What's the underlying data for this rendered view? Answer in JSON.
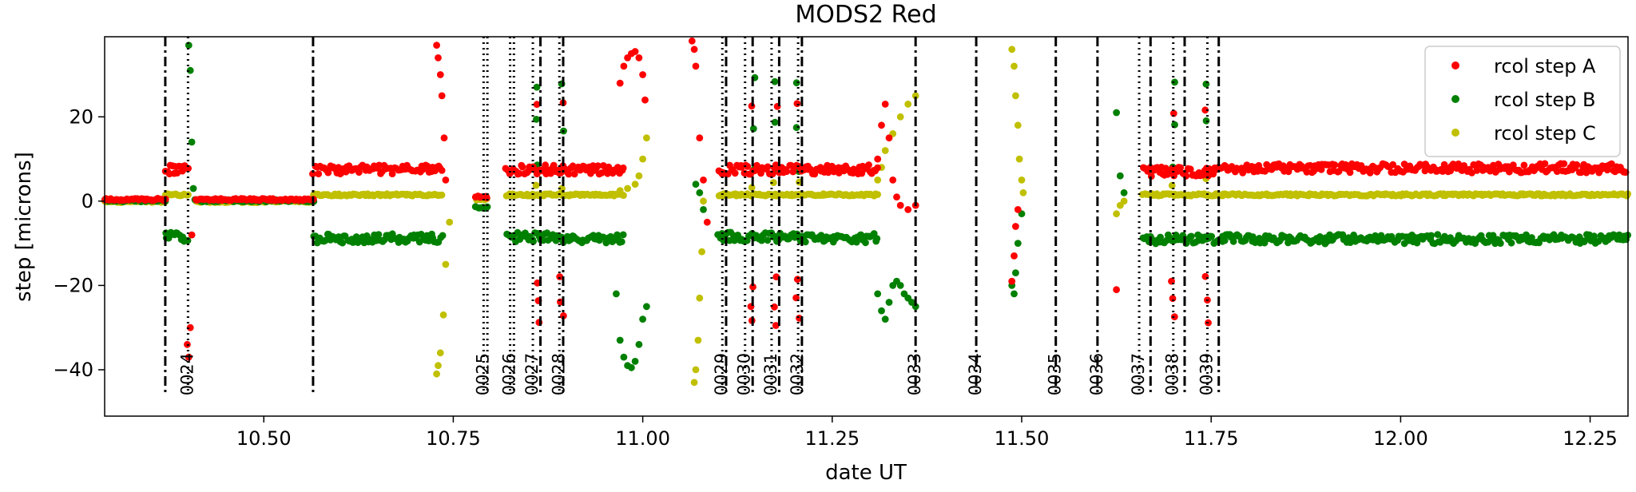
{
  "chart_data": {
    "type": "scatter",
    "title": "MODS2 Red",
    "xlabel": "date UT",
    "ylabel": "step [microns]",
    "xlim": [
      10.29,
      12.3
    ],
    "ylim": [
      -51,
      39
    ],
    "xticks": [
      10.5,
      10.75,
      11.0,
      11.25,
      11.5,
      11.75,
      12.0,
      12.25
    ],
    "xtick_labels": [
      "10.50",
      "10.75",
      "11.00",
      "11.25",
      "11.50",
      "11.75",
      "12.00",
      "12.25"
    ],
    "yticks": [
      -40,
      -20,
      0,
      20
    ],
    "ytick_labels": [
      "−40",
      "−20",
      "0",
      "20"
    ],
    "grid": false,
    "legend_position": "top-right",
    "series": [
      {
        "name": "rcol step A",
        "color": "#ff0000",
        "baseline": 7.5
      },
      {
        "name": "rcol step B",
        "color": "#008000",
        "baseline": -8.8
      },
      {
        "name": "rcol step C",
        "color": "#c0c000",
        "baseline": 1.5
      }
    ],
    "segments": [
      {
        "x_start": 10.29,
        "x_end": 10.37,
        "values": {
          "A": 0.4,
          "B": 0.1,
          "C": -0.1
        }
      },
      {
        "x_start": 10.37,
        "x_end": 10.4,
        "values": {
          "A": 7.5,
          "B": -8.5,
          "C": 1.5
        }
      },
      {
        "x_start": 10.41,
        "x_end": 10.565,
        "values": {
          "A": 0.4,
          "B": 0.1,
          "C": -0.1
        }
      },
      {
        "x_start": 10.565,
        "x_end": 10.735,
        "values": {
          "A": 7.5,
          "B": -8.8,
          "C": 1.5
        }
      },
      {
        "x_start": 10.78,
        "x_end": 10.795,
        "values": {
          "A": 1.0,
          "B": -1.5,
          "C": 0.5
        }
      },
      {
        "x_start": 10.82,
        "x_end": 10.895,
        "values": {
          "A": 7.5,
          "B": -8.5,
          "C": 1.5
        }
      },
      {
        "x_start": 10.895,
        "x_end": 10.975,
        "values": {
          "A": 7.5,
          "B": -8.8,
          "C": 1.5
        }
      },
      {
        "x_start": 11.1,
        "x_end": 11.21,
        "values": {
          "A": 7.5,
          "B": -8.5,
          "C": 1.5
        }
      },
      {
        "x_start": 11.21,
        "x_end": 11.31,
        "values": {
          "A": 7.5,
          "B": -8.8,
          "C": 1.5
        }
      },
      {
        "x_start": 11.66,
        "x_end": 11.765,
        "values": {
          "A": 7.0,
          "B": -9.0,
          "C": 1.5
        }
      },
      {
        "x_start": 11.765,
        "x_end": 12.3,
        "values": {
          "A": 7.8,
          "B": -9.0,
          "C": 1.5
        }
      }
    ],
    "excursions": [
      {
        "series": "A",
        "points": [
          [
            10.728,
            37
          ],
          [
            10.73,
            34
          ],
          [
            10.733,
            30
          ],
          [
            10.735,
            25
          ],
          [
            10.738,
            15
          ],
          [
            10.74,
            5
          ]
        ]
      },
      {
        "series": "C",
        "points": [
          [
            10.728,
            -41
          ],
          [
            10.73,
            -39
          ],
          [
            10.733,
            -36
          ],
          [
            10.737,
            -27
          ],
          [
            10.74,
            -15
          ],
          [
            10.745,
            -5
          ]
        ]
      },
      {
        "series": "B",
        "points": [
          [
            10.401,
            37
          ],
          [
            10.403,
            31
          ],
          [
            10.405,
            14
          ],
          [
            10.407,
            3
          ]
        ]
      },
      {
        "series": "A",
        "points": [
          [
            10.399,
            -34
          ],
          [
            10.401,
            -37
          ],
          [
            10.403,
            -30
          ],
          [
            10.405,
            -8
          ]
        ]
      },
      {
        "series": "A",
        "points": [
          [
            10.97,
            28
          ],
          [
            10.975,
            32
          ],
          [
            10.98,
            34
          ],
          [
            10.985,
            35
          ],
          [
            10.99,
            35.5
          ],
          [
            10.995,
            34
          ],
          [
            11.0,
            30
          ],
          [
            11.003,
            24
          ]
        ]
      },
      {
        "series": "B",
        "points": [
          [
            10.965,
            -22
          ],
          [
            10.97,
            -33
          ],
          [
            10.975,
            -37
          ],
          [
            10.98,
            -39
          ],
          [
            10.985,
            -39.5
          ],
          [
            10.99,
            -38
          ],
          [
            10.995,
            -34
          ],
          [
            11.0,
            -28
          ],
          [
            11.005,
            -25
          ]
        ]
      },
      {
        "series": "C",
        "points": [
          [
            10.97,
            2.5
          ],
          [
            10.98,
            3
          ],
          [
            10.99,
            4
          ],
          [
            10.995,
            6
          ],
          [
            11.0,
            10
          ],
          [
            11.005,
            15
          ]
        ]
      },
      {
        "series": "A",
        "points": [
          [
            11.065,
            38
          ],
          [
            11.068,
            36
          ],
          [
            11.07,
            32
          ],
          [
            11.075,
            15
          ],
          [
            11.08,
            5
          ],
          [
            11.085,
            -5
          ]
        ]
      },
      {
        "series": "C",
        "points": [
          [
            11.068,
            -43
          ],
          [
            11.07,
            -40
          ],
          [
            11.073,
            -33
          ],
          [
            11.075,
            -23
          ],
          [
            11.078,
            -12
          ],
          [
            11.08,
            0
          ]
        ]
      },
      {
        "series": "B",
        "points": [
          [
            11.07,
            4
          ],
          [
            11.075,
            2
          ],
          [
            11.08,
            -2
          ]
        ]
      },
      {
        "series": "C",
        "points": [
          [
            11.31,
            5
          ],
          [
            11.315,
            8
          ],
          [
            11.32,
            12
          ],
          [
            11.33,
            16
          ],
          [
            11.34,
            20
          ],
          [
            11.35,
            23
          ],
          [
            11.36,
            25
          ]
        ]
      },
      {
        "series": "A",
        "points": [
          [
            11.31,
            10
          ],
          [
            11.315,
            18
          ],
          [
            11.32,
            23
          ],
          [
            11.325,
            15
          ],
          [
            11.33,
            5
          ],
          [
            11.335,
            1
          ],
          [
            11.34,
            -1
          ],
          [
            11.35,
            -2
          ],
          [
            11.36,
            -1
          ]
        ]
      },
      {
        "series": "B",
        "points": [
          [
            11.31,
            -22
          ],
          [
            11.315,
            -26
          ],
          [
            11.32,
            -28
          ],
          [
            11.325,
            -24
          ],
          [
            11.33,
            -20
          ],
          [
            11.335,
            -19
          ],
          [
            11.34,
            -20
          ],
          [
            11.345,
            -22
          ],
          [
            11.35,
            -23
          ],
          [
            11.355,
            -24
          ],
          [
            11.36,
            -25
          ]
        ]
      },
      {
        "series": "C",
        "points": [
          [
            11.487,
            36
          ],
          [
            11.49,
            32
          ],
          [
            11.492,
            25
          ],
          [
            11.495,
            18
          ],
          [
            11.497,
            10
          ],
          [
            11.5,
            5
          ],
          [
            11.502,
            2
          ]
        ]
      },
      {
        "series": "A",
        "points": [
          [
            11.487,
            -19
          ],
          [
            11.49,
            -13
          ],
          [
            11.492,
            -6
          ],
          [
            11.495,
            -2
          ]
        ]
      },
      {
        "series": "B",
        "points": [
          [
            11.487,
            -20
          ],
          [
            11.49,
            -22
          ],
          [
            11.492,
            -17
          ],
          [
            11.495,
            -10
          ],
          [
            11.5,
            -3
          ]
        ]
      },
      {
        "series": "B",
        "points": [
          [
            11.625,
            21
          ],
          [
            11.63,
            6
          ],
          [
            11.635,
            2
          ]
        ]
      },
      {
        "series": "A",
        "points": [
          [
            11.625,
            -21
          ]
        ]
      },
      {
        "series": "C",
        "points": [
          [
            11.625,
            -3
          ],
          [
            11.63,
            -1
          ],
          [
            11.635,
            0
          ]
        ]
      }
    ],
    "spikes": [
      10.862,
      10.893,
      11.145,
      11.175,
      11.205,
      11.7,
      11.745
    ],
    "v_lines": [
      {
        "x": 10.37,
        "style": "dashdot"
      },
      {
        "x": 10.4,
        "style": "dotted",
        "label": "0024"
      },
      {
        "x": 10.565,
        "style": "dashdot"
      },
      {
        "x": 10.79,
        "style": "dotted",
        "label": "0025"
      },
      {
        "x": 10.795,
        "style": "dotted"
      },
      {
        "x": 10.825,
        "style": "dotted",
        "label": "0026"
      },
      {
        "x": 10.83,
        "style": "dotted"
      },
      {
        "x": 10.855,
        "style": "dotted",
        "label": "0027"
      },
      {
        "x": 10.865,
        "style": "dashdot"
      },
      {
        "x": 10.89,
        "style": "dotted",
        "label": "0028"
      },
      {
        "x": 10.895,
        "style": "dashdot"
      },
      {
        "x": 11.105,
        "style": "dotted",
        "label": "0029"
      },
      {
        "x": 11.11,
        "style": "dashdot"
      },
      {
        "x": 11.135,
        "style": "dotted",
        "label": "0030"
      },
      {
        "x": 11.145,
        "style": "dashdot"
      },
      {
        "x": 11.17,
        "style": "dotted",
        "label": "0031"
      },
      {
        "x": 11.18,
        "style": "dashdot"
      },
      {
        "x": 11.205,
        "style": "dotted",
        "label": "0032"
      },
      {
        "x": 11.21,
        "style": "dashdot"
      },
      {
        "x": 11.36,
        "style": "dashdot",
        "label": "0033"
      },
      {
        "x": 11.44,
        "style": "dashdot",
        "label": "0034"
      },
      {
        "x": 11.545,
        "style": "dashdot",
        "label": "0035"
      },
      {
        "x": 11.6,
        "style": "dashdot",
        "label": "0036"
      },
      {
        "x": 11.655,
        "style": "dotted",
        "label": "0037"
      },
      {
        "x": 11.67,
        "style": "dashdot"
      },
      {
        "x": 11.7,
        "style": "dotted",
        "label": "0038"
      },
      {
        "x": 11.715,
        "style": "dashdot"
      },
      {
        "x": 11.745,
        "style": "dotted",
        "label": "0039"
      },
      {
        "x": 11.76,
        "style": "dashdot"
      }
    ]
  }
}
